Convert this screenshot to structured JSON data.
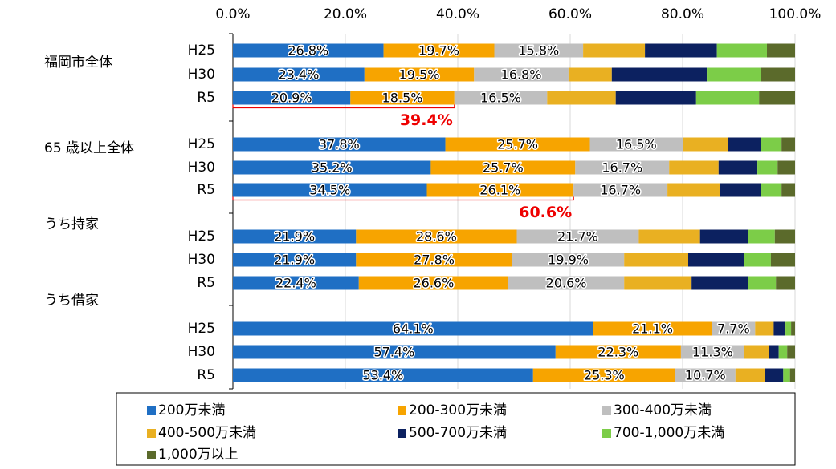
{
  "chart_data": {
    "type": "stacked-bar-horizontal",
    "categories": [
      "H25",
      "H30",
      "R5",
      "H25",
      "H30",
      "R5",
      "H25",
      "H30",
      "R5",
      "H25",
      "H30",
      "R5"
    ],
    "groups": [
      "福岡市全体",
      "65 歳以上全体",
      "うち持家",
      "うち借家"
    ],
    "series": [
      {
        "name": "200万未満",
        "color": "#1f6fc4",
        "values": [
          26.8,
          23.4,
          20.9,
          37.8,
          35.2,
          34.5,
          21.9,
          21.9,
          22.4,
          64.1,
          57.4,
          53.4
        ],
        "value_labels": [
          "26.8%",
          "23.4%",
          "20.9%",
          "37.8%",
          "35.2%",
          "34.5%",
          "21.9%",
          "21.9%",
          "22.4%",
          "64.1%",
          "57.4%",
          "53.4%"
        ]
      },
      {
        "name": "200-300万未満",
        "color": "#f7a400",
        "values": [
          19.7,
          19.5,
          18.5,
          25.7,
          25.7,
          26.1,
          28.6,
          27.8,
          26.6,
          21.1,
          22.3,
          25.3
        ],
        "value_labels": [
          "19.7%",
          "19.5%",
          "18.5%",
          "25.7%",
          "25.7%",
          "26.1%",
          "28.6%",
          "27.8%",
          "26.6%",
          "21.1%",
          "22.3%",
          "25.3%"
        ]
      },
      {
        "name": "300-400万未満",
        "color": "#bfbfbf",
        "values": [
          15.8,
          16.8,
          16.5,
          16.5,
          16.7,
          16.7,
          21.7,
          19.9,
          20.6,
          7.7,
          11.3,
          10.7
        ],
        "value_labels": [
          "15.8%",
          "16.8%",
          "16.5%",
          "16.5%",
          "16.7%",
          "16.7%",
          "21.7%",
          "19.9%",
          "20.6%",
          "7.7%",
          "11.3%",
          "10.7%"
        ]
      },
      {
        "name": "400-500万未満",
        "color": "#e9b022",
        "values": [
          11.0,
          7.7,
          12.2,
          8.1,
          8.8,
          9.4,
          10.9,
          11.4,
          12.0,
          3.3,
          4.4,
          5.3
        ]
      },
      {
        "name": "500-700万未満",
        "color": "#0c2160",
        "values": [
          12.8,
          16.9,
          14.3,
          5.9,
          6.9,
          7.3,
          8.5,
          10.0,
          10.0,
          2.1,
          1.7,
          3.2
        ]
      },
      {
        "name": "700-1,000万未満",
        "color": "#7ccd48",
        "values": [
          8.9,
          9.7,
          11.2,
          3.6,
          3.6,
          3.6,
          4.8,
          4.7,
          5.0,
          1.0,
          1.5,
          1.2
        ]
      },
      {
        "name": "1,000万以上",
        "color": "#5b6a2b",
        "values": [
          5.0,
          6.0,
          6.4,
          2.4,
          3.1,
          2.4,
          3.6,
          4.3,
          3.4,
          0.7,
          1.4,
          0.9
        ]
      }
    ],
    "annotations": [
      {
        "text": "39.4%",
        "value": 39.4,
        "category": 2
      },
      {
        "text": "60.6%",
        "value": 60.6,
        "category": 5
      }
    ],
    "xlim": [
      0,
      100
    ],
    "xticks": [
      {
        "value": 0,
        "label": "0.0%"
      },
      {
        "value": 20,
        "label": "20.0%"
      },
      {
        "value": 40,
        "label": "40.0%"
      },
      {
        "value": 60,
        "label": "60.0%"
      },
      {
        "value": 80,
        "label": "80.0%"
      },
      {
        "value": 100,
        "label": "100.0%"
      }
    ],
    "grid": true
  }
}
